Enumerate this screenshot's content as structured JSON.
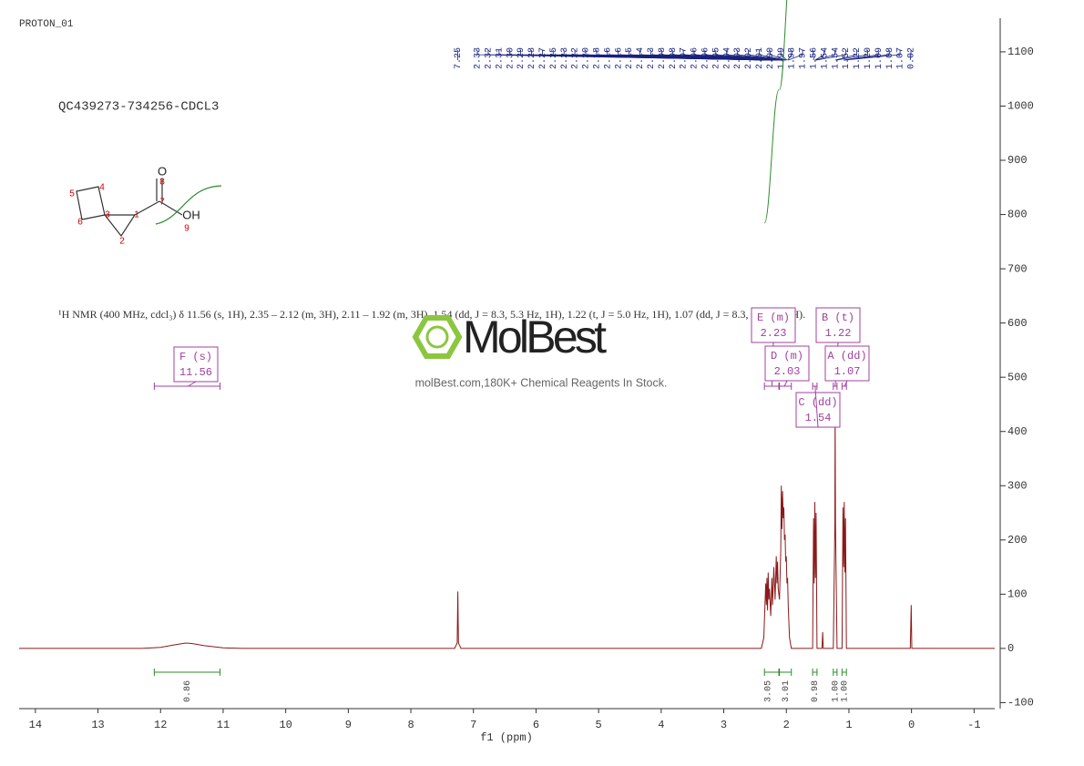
{
  "header": {
    "title": "PROTON_01",
    "sample": "QC439273-734256-CDCL3"
  },
  "description": "¹H NMR (400 MHz, cdcl₃) δ 11.56 (s, 1H), 2.35 – 2.12 (m, 3H), 2.11 – 1.92 (m, 3H), 1.54 (dd, J = 8.3, 5.3 Hz, 1H), 1.22 (t, J = 5.0 Hz, 1H), 1.07 (dd, J = 8.3, 4.6 Hz, 1H).",
  "watermark": {
    "brand": "MolBest",
    "tagline": "molBest.com,180K+ Chemical Reagents In Stock."
  },
  "structure": {
    "atoms": [
      "O",
      "8",
      "7",
      "OH",
      "9",
      "1",
      "2",
      "3",
      "4",
      "5",
      "6"
    ]
  },
  "chart_data": {
    "type": "line",
    "xlabel": "f1 (ppm)",
    "color": "#8b1a1a",
    "x": [
      14.26,
      12.3,
      12.0,
      11.8,
      11.6,
      11.5,
      11.3,
      11.0,
      10.7,
      7.3,
      7.26,
      7.25,
      7.24,
      7.2,
      2.4,
      2.36,
      2.33,
      2.32,
      2.31,
      2.3,
      2.29,
      2.28,
      2.27,
      2.25,
      2.23,
      2.22,
      2.2,
      2.18,
      2.16,
      2.15,
      2.14,
      2.13,
      2.11,
      2.09,
      2.08,
      2.07,
      2.06,
      2.05,
      2.04,
      2.03,
      2.02,
      2.01,
      2.0,
      1.99,
      1.98,
      1.97,
      1.95,
      1.92,
      1.58,
      1.565,
      1.555,
      1.545,
      1.535,
      1.525,
      1.51,
      1.43,
      1.42,
      1.41,
      1.25,
      1.225,
      1.22,
      1.215,
      1.19,
      1.11,
      1.095,
      1.085,
      1.075,
      1.065,
      1.055,
      1.04,
      0.02,
      0.005,
      -0.005,
      -1.33
    ],
    "values": [
      0,
      0,
      2,
      6,
      10,
      9,
      5,
      1,
      0,
      0,
      10,
      105,
      10,
      0,
      0,
      20,
      120,
      80,
      130,
      70,
      140,
      90,
      110,
      60,
      130,
      80,
      150,
      90,
      170,
      120,
      160,
      110,
      90,
      180,
      300,
      220,
      290,
      240,
      260,
      200,
      210,
      160,
      170,
      120,
      130,
      80,
      20,
      0,
      0,
      240,
      120,
      270,
      130,
      250,
      0,
      0,
      30,
      0,
      0,
      230,
      440,
      230,
      0,
      0,
      260,
      150,
      270,
      140,
      240,
      0,
      0,
      80,
      0,
      0
    ],
    "xlim": [
      14.26,
      -1.33
    ],
    "ylim": [
      -111,
      1162
    ],
    "xticks": [
      14,
      13,
      12,
      11,
      10,
      9,
      8,
      7,
      6,
      5,
      4,
      3,
      2,
      1,
      0,
      -1
    ],
    "yticks": [
      1100,
      1000,
      900,
      800,
      700,
      600,
      500,
      400,
      300,
      200,
      100,
      0,
      -100
    ],
    "peak_labels": [
      "7.25",
      "2.33",
      "2.32",
      "2.31",
      "2.30",
      "2.29",
      "2.28",
      "2.27",
      "2.25",
      "2.23",
      "2.22",
      "2.20",
      "2.18",
      "2.16",
      "2.16",
      "2.15",
      "2.14",
      "2.13",
      "2.08",
      "2.08",
      "2.07",
      "2.06",
      "2.06",
      "2.05",
      "2.04",
      "2.03",
      "2.02",
      "2.01",
      "2.00",
      "1.99",
      "1.98",
      "1.97",
      "1.56",
      "1.54",
      "1.54",
      "1.52",
      "1.22",
      "1.20",
      "1.09",
      "1.08",
      "1.07",
      "0.02"
    ],
    "multiplets": [
      {
        "label": "F (s)",
        "shift": 11.56,
        "range": [
          12.1,
          11.05
        ],
        "integral": 0.86
      },
      {
        "label": "E (m)",
        "shift": 2.23,
        "range": [
          2.35,
          2.12
        ],
        "integral": 3.05
      },
      {
        "label": "D (m)",
        "shift": 2.03,
        "range": [
          2.11,
          1.92
        ],
        "integral": 3.01
      },
      {
        "label": "C (dd)",
        "shift": 1.54,
        "range": [
          1.58,
          1.51
        ],
        "integral": 0.98
      },
      {
        "label": "B (t)",
        "shift": 1.22,
        "range": [
          1.25,
          1.19
        ],
        "integral": {
          "value": 1,
          "label": "1.00"
        }
      },
      {
        "label": "A (dd)",
        "shift": 1.07,
        "range": [
          1.11,
          1.04
        ],
        "integral": {
          "value": 1,
          "label": "1.00"
        }
      }
    ]
  }
}
